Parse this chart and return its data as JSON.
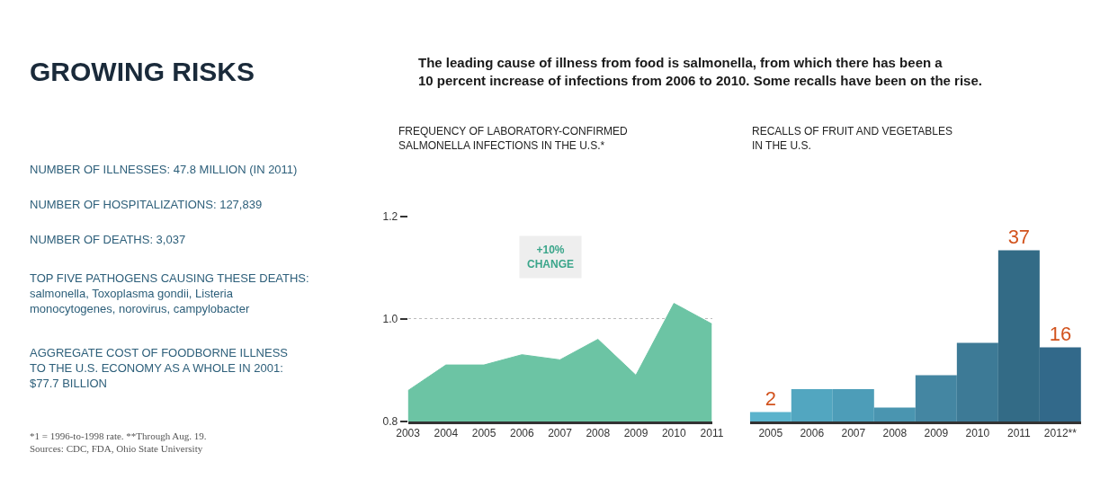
{
  "chart_data": [
    {
      "type": "other",
      "title": "GROWING RISKS",
      "subtitle": "The leading cause of illness from food is salmonella, from which there has been a\n10 percent increase of infections from 2006 to 2010. Some recalls have been on the rise.",
      "annotations": [
        "NUMBER OF ILLNESSES: 47.8 MILLION (IN 2011)",
        "NUMBER OF HOSPITALIZATIONS: 127,839",
        "NUMBER OF DEATHS: 3,037",
        "TOP FIVE PATHOGENS CAUSING THESE DEATHS:\nsalmonella, Toxoplasma gondii, Listeria\nmonocytogenes, norovirus, campylobacter",
        "AGGREGATE COST OF FOODBORNE ILLNESS\nTO THE U.S. ECONOMY AS A WHOLE IN 2001:\n$77.7 BILLION",
        "*1 = 1996-to-1998 rate. **Through Aug. 19.\nSources: CDC, FDA, Ohio State University"
      ]
    },
    {
      "type": "area",
      "title": "FREQUENCY OF LABORATORY-CONFIRMED\nSALMONELLA INFECTIONS IN THE U.S.*",
      "categories": [
        "2003",
        "2004",
        "2005",
        "2006",
        "2007",
        "2008",
        "2009",
        "2010",
        "2011"
      ],
      "values": [
        0.86,
        0.91,
        0.91,
        0.93,
        0.92,
        0.96,
        0.89,
        1.03,
        0.99
      ],
      "color": "#6cc4a4",
      "ylim": [
        0.8,
        1.2
      ],
      "yticks": [
        0.8,
        {
          "value": 1.0,
          "label": "1.0"
        },
        1.2
      ],
      "grid": "y",
      "annotations": [
        "+10%\nCHANGE"
      ]
    },
    {
      "type": "bar",
      "title": "RECALLS OF FRUIT AND VEGETABLES\nIN THE U.S.",
      "categories": [
        "2005",
        "2006",
        "2007",
        "2008",
        "2009",
        "2010",
        "2011",
        "2012**"
      ],
      "values": [
        2,
        7,
        7,
        3,
        10,
        17,
        37,
        16
      ],
      "value_labels": [
        "2",
        null,
        null,
        null,
        null,
        null,
        "37",
        "16"
      ],
      "colors": [
        "#5bb3cc",
        "#52a6c0",
        "#4d9db8",
        "#4a95b0",
        "#4486a2",
        "#3d7a96",
        "#336b86",
        "#32698a"
      ]
    }
  ]
}
